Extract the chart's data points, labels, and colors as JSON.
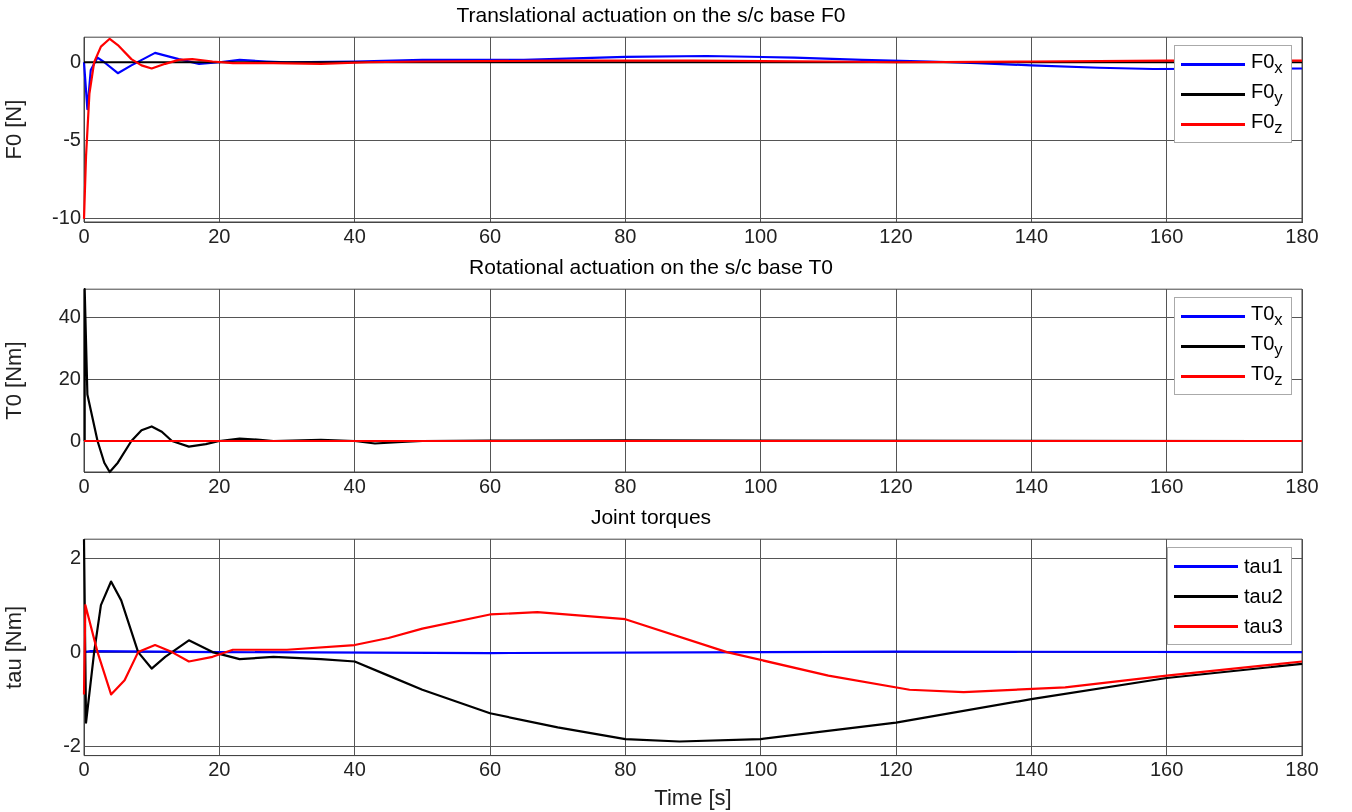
{
  "chart_data": [
    {
      "type": "line",
      "title": "Translational actuation on the s/c base F0",
      "ylabel": "F0 [N]",
      "xlim": [
        0,
        180
      ],
      "xticks": [
        0,
        20,
        40,
        60,
        80,
        100,
        120,
        140,
        160,
        180
      ],
      "ylim": [
        -10.2,
        1.6
      ],
      "yticks": [
        -10,
        -5,
        0
      ],
      "grid": true,
      "legend": "top right",
      "marker": "none",
      "line_style": "solid",
      "tick_labels": [
        "x",
        "y"
      ],
      "series": [
        {
          "name": "F0$_{x}$",
          "color": "#0000ff",
          "x": [
            0,
            0.5,
            1,
            2,
            3,
            5,
            7,
            10.5,
            14,
            17,
            20,
            23,
            27,
            30,
            40,
            50,
            65,
            80,
            92,
            105,
            115,
            125,
            132,
            140,
            150,
            158,
            180
          ],
          "values": [
            0,
            -3,
            -0.5,
            0.3,
            0,
            -0.7,
            -0.2,
            0.6,
            0.2,
            -0.1,
            0,
            0.15,
            0.05,
            0,
            0.05,
            0.15,
            0.15,
            0.35,
            0.4,
            0.3,
            0.15,
            0.05,
            -0.05,
            -0.2,
            -0.35,
            -0.43,
            -0.4
          ]
        },
        {
          "name": "F0$_{y}$",
          "color": "#000000",
          "x": [
            0,
            180
          ],
          "values": [
            0,
            0
          ]
        },
        {
          "name": "F0$_{z}$",
          "color": "#ff0000",
          "x": [
            0,
            0.3,
            0.8,
            1.5,
            2.5,
            3.8,
            5,
            7,
            8.5,
            10,
            12,
            14,
            16,
            19,
            22,
            28,
            35,
            42,
            50,
            70,
            90,
            110,
            120,
            140,
            160,
            180
          ],
          "values": [
            -10,
            -6,
            -2,
            0,
            1,
            1.5,
            1.1,
            0.2,
            -0.2,
            -0.4,
            -0.1,
            0.15,
            0.2,
            0.05,
            -0.05,
            -0.05,
            -0.1,
            0,
            0.05,
            0.1,
            0.1,
            0.05,
            0,
            0.05,
            0.1,
            0.1
          ]
        }
      ]
    },
    {
      "type": "line",
      "title": "Rotational actuation on the s/c base T0",
      "ylabel": "T0 [Nm]",
      "xlim": [
        0,
        180
      ],
      "xticks": [
        0,
        20,
        40,
        60,
        80,
        100,
        120,
        140,
        160,
        180
      ],
      "ylim": [
        -10,
        49
      ],
      "yticks": [
        0,
        20,
        40
      ],
      "grid": true,
      "legend": "top right",
      "marker": "none",
      "line_style": "solid",
      "tick_labels": [
        "x",
        "y"
      ],
      "series": [
        {
          "name": "T0$_{x}$",
          "color": "#0000ff"
        },
        {
          "name": "T0$_{y}$",
          "color": "#000000",
          "x": [
            0,
            0.1,
            0.5,
            1,
            2,
            3,
            3.8,
            5,
            7,
            8.5,
            10,
            11.5,
            13,
            15.5,
            18,
            20,
            23,
            26,
            28,
            35,
            40,
            43,
            47,
            50,
            60,
            80,
            100,
            180
          ],
          "values": [
            0,
            49,
            15,
            10,
            0,
            -7,
            -10,
            -7,
            0,
            3.5,
            4.7,
            3,
            0,
            -1.8,
            -1,
            0,
            0.8,
            0.4,
            0,
            0.4,
            0,
            -0.8,
            -0.3,
            0,
            0.1,
            0.2,
            0.1,
            0
          ]
        },
        {
          "name": "T0$_{z}$",
          "color": "#ff0000",
          "x": [
            0,
            180
          ],
          "values": [
            0,
            0
          ]
        }
      ]
    },
    {
      "type": "line",
      "title": "Joint torques",
      "xlabel": "Time [s]",
      "ylabel": "tau [Nm]",
      "xlim": [
        0,
        180
      ],
      "xticks": [
        0,
        20,
        40,
        60,
        80,
        100,
        120,
        140,
        160,
        180
      ],
      "ylim": [
        -2.2,
        2.4
      ],
      "yticks": [
        -2,
        0,
        2
      ],
      "grid": true,
      "legend": "top right",
      "marker": "none",
      "line_style": "solid",
      "series": [
        {
          "name": "tau1",
          "color": "#0000ff",
          "x": [
            0,
            1,
            20,
            60,
            120,
            180
          ],
          "values": [
            0,
            0.02,
            0,
            -0.02,
            0.01,
            0
          ]
        },
        {
          "name": "tau2",
          "color": "#000000",
          "x": [
            0,
            0.3,
            1.5,
            2.5,
            4,
            5.5,
            8,
            10,
            12,
            15.5,
            19,
            23,
            28,
            35,
            40,
            45,
            50,
            60,
            70,
            80,
            88,
            100,
            120,
            140,
            160,
            180
          ],
          "values": [
            2.4,
            -1.5,
            0,
            1,
            1.5,
            1.1,
            0,
            -0.35,
            -0.1,
            0.25,
            0,
            -0.15,
            -0.1,
            -0.15,
            -0.2,
            -0.5,
            -0.8,
            -1.3,
            -1.6,
            -1.85,
            -1.9,
            -1.85,
            -1.5,
            -1,
            -0.55,
            -0.25
          ]
        },
        {
          "name": "tau3",
          "color": "#ff0000",
          "x": [
            0,
            0.2,
            2,
            4,
            6,
            8,
            10.5,
            13,
            15.5,
            19,
            22,
            30,
            40,
            45,
            50,
            60,
            67,
            80,
            95,
            110,
            122,
            130,
            145,
            160,
            180
          ],
          "values": [
            -0.9,
            1,
            0,
            -0.9,
            -0.6,
            0,
            0.15,
            0,
            -0.2,
            -0.1,
            0.05,
            0.05,
            0.15,
            0.3,
            0.5,
            0.8,
            0.85,
            0.7,
            0,
            -0.5,
            -0.8,
            -0.85,
            -0.75,
            -0.5,
            -0.2
          ]
        }
      ]
    }
  ]
}
